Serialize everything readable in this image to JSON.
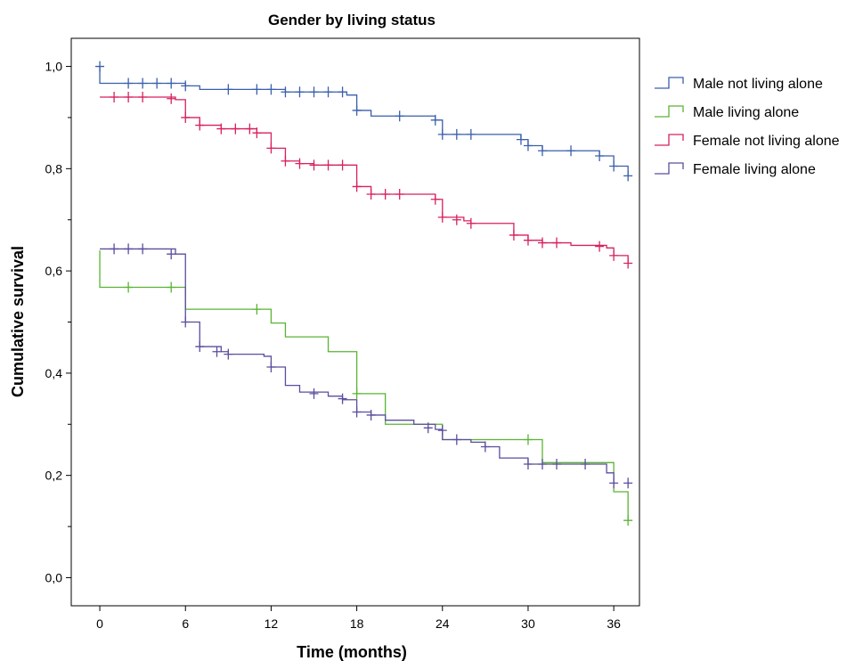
{
  "chart_data": {
    "type": "line",
    "title": "Gender by living status",
    "xlabel": "Time (months)",
    "ylabel": "Cumulative survival",
    "xlim": [
      -2,
      37.8
    ],
    "ylim": [
      -0.055,
      1.055
    ],
    "x_ticks": [
      0,
      6,
      12,
      18,
      24,
      30,
      36
    ],
    "y_ticks": [
      0.0,
      0.2,
      0.4,
      0.6,
      0.8,
      1.0
    ],
    "y_tick_labels": [
      "0,0",
      "0,2",
      "0,4",
      "0,6",
      "0,8",
      "1,0"
    ],
    "y_minor_ticks": [
      0.1,
      0.3,
      0.5,
      0.7,
      0.9
    ],
    "grid": false,
    "legend_position": "right",
    "series": [
      {
        "name": "Male not living alone",
        "color": "#3a5fac",
        "steps": [
          [
            0,
            1.0
          ],
          [
            0,
            0.967
          ],
          [
            6,
            0.962
          ],
          [
            7,
            0.955
          ],
          [
            13,
            0.95
          ],
          [
            17.3,
            0.944
          ],
          [
            18,
            0.914
          ],
          [
            19,
            0.903
          ],
          [
            23.5,
            0.895
          ],
          [
            24,
            0.867
          ],
          [
            29.5,
            0.857
          ],
          [
            30,
            0.845
          ],
          [
            31,
            0.835
          ],
          [
            35,
            0.825
          ],
          [
            36,
            0.805
          ],
          [
            37,
            0.786
          ]
        ],
        "censored": [
          [
            0,
            1.0
          ],
          [
            2,
            0.967
          ],
          [
            3,
            0.967
          ],
          [
            4,
            0.967
          ],
          [
            5,
            0.967
          ],
          [
            6,
            0.962
          ],
          [
            9,
            0.955
          ],
          [
            11,
            0.955
          ],
          [
            12,
            0.955
          ],
          [
            13,
            0.95
          ],
          [
            14,
            0.95
          ],
          [
            15,
            0.95
          ],
          [
            16,
            0.95
          ],
          [
            17,
            0.95
          ],
          [
            18,
            0.914
          ],
          [
            21,
            0.903
          ],
          [
            23.5,
            0.895
          ],
          [
            24,
            0.867
          ],
          [
            25,
            0.867
          ],
          [
            26,
            0.867
          ],
          [
            29.5,
            0.857
          ],
          [
            30,
            0.845
          ],
          [
            31,
            0.835
          ],
          [
            33,
            0.835
          ],
          [
            35,
            0.825
          ],
          [
            36,
            0.805
          ],
          [
            37,
            0.786
          ]
        ]
      },
      {
        "name": "Male living alone",
        "color": "#5ab433",
        "steps": [
          [
            0,
            0.64
          ],
          [
            0,
            0.568
          ],
          [
            6,
            0.525
          ],
          [
            12,
            0.498
          ],
          [
            13,
            0.471
          ],
          [
            16,
            0.442
          ],
          [
            18,
            0.36
          ],
          [
            20,
            0.3
          ],
          [
            24,
            0.27
          ],
          [
            31,
            0.225
          ],
          [
            36,
            0.168
          ],
          [
            37,
            0.112
          ]
        ],
        "censored": [
          [
            2,
            0.568
          ],
          [
            5,
            0.568
          ],
          [
            11,
            0.525
          ],
          [
            18,
            0.36
          ],
          [
            30,
            0.27
          ],
          [
            37,
            0.112
          ]
        ]
      },
      {
        "name": "Female not living alone",
        "color": "#d7215e",
        "steps": [
          [
            0,
            0.94
          ],
          [
            5,
            0.94
          ],
          [
            5.3,
            0.935
          ],
          [
            6,
            0.9
          ],
          [
            7,
            0.885
          ],
          [
            8.5,
            0.878
          ],
          [
            11,
            0.87
          ],
          [
            12,
            0.84
          ],
          [
            13,
            0.815
          ],
          [
            14,
            0.81
          ],
          [
            15,
            0.807
          ],
          [
            18,
            0.765
          ],
          [
            19,
            0.75
          ],
          [
            23.5,
            0.74
          ],
          [
            24,
            0.705
          ],
          [
            25.5,
            0.698
          ],
          [
            26,
            0.693
          ],
          [
            29,
            0.67
          ],
          [
            30,
            0.66
          ],
          [
            31,
            0.655
          ],
          [
            33,
            0.65
          ],
          [
            35.5,
            0.645
          ],
          [
            36,
            0.63
          ],
          [
            37,
            0.615
          ]
        ],
        "censored": [
          [
            1,
            0.94
          ],
          [
            2,
            0.94
          ],
          [
            3,
            0.94
          ],
          [
            5,
            0.937
          ],
          [
            6,
            0.9
          ],
          [
            7,
            0.885
          ],
          [
            8.5,
            0.878
          ],
          [
            9.5,
            0.878
          ],
          [
            10.5,
            0.878
          ],
          [
            11,
            0.87
          ],
          [
            12,
            0.84
          ],
          [
            13,
            0.815
          ],
          [
            14,
            0.81
          ],
          [
            15,
            0.807
          ],
          [
            16,
            0.807
          ],
          [
            17,
            0.807
          ],
          [
            18,
            0.765
          ],
          [
            19,
            0.75
          ],
          [
            20,
            0.75
          ],
          [
            21,
            0.75
          ],
          [
            23.5,
            0.74
          ],
          [
            24,
            0.705
          ],
          [
            25,
            0.7
          ],
          [
            26,
            0.693
          ],
          [
            29,
            0.67
          ],
          [
            30,
            0.66
          ],
          [
            31,
            0.655
          ],
          [
            32,
            0.655
          ],
          [
            35,
            0.648
          ],
          [
            36,
            0.63
          ],
          [
            37,
            0.615
          ]
        ]
      },
      {
        "name": "Female living alone",
        "color": "#5b4d9e",
        "steps": [
          [
            0,
            0.643
          ],
          [
            5,
            0.643
          ],
          [
            5.3,
            0.633
          ],
          [
            6,
            0.5
          ],
          [
            7,
            0.452
          ],
          [
            8.5,
            0.442
          ],
          [
            9,
            0.437
          ],
          [
            11.5,
            0.433
          ],
          [
            12,
            0.412
          ],
          [
            13,
            0.376
          ],
          [
            14,
            0.363
          ],
          [
            16,
            0.355
          ],
          [
            17,
            0.348
          ],
          [
            18,
            0.324
          ],
          [
            19,
            0.318
          ],
          [
            20,
            0.308
          ],
          [
            22,
            0.3
          ],
          [
            23.5,
            0.29
          ],
          [
            24,
            0.27
          ],
          [
            26,
            0.265
          ],
          [
            27,
            0.256
          ],
          [
            28,
            0.234
          ],
          [
            30,
            0.222
          ],
          [
            35,
            0.222
          ],
          [
            35.5,
            0.205
          ],
          [
            36,
            0.185
          ]
        ],
        "censored": [
          [
            1,
            0.643
          ],
          [
            2,
            0.643
          ],
          [
            3,
            0.643
          ],
          [
            5,
            0.633
          ],
          [
            6,
            0.5
          ],
          [
            7,
            0.452
          ],
          [
            8.2,
            0.442
          ],
          [
            9,
            0.437
          ],
          [
            12,
            0.412
          ],
          [
            15,
            0.36
          ],
          [
            17,
            0.35
          ],
          [
            18,
            0.324
          ],
          [
            19,
            0.318
          ],
          [
            23,
            0.293
          ],
          [
            24,
            0.288
          ],
          [
            25,
            0.27
          ],
          [
            27,
            0.256
          ],
          [
            30,
            0.222
          ],
          [
            31,
            0.222
          ],
          [
            32,
            0.222
          ],
          [
            34,
            0.222
          ],
          [
            36,
            0.185
          ],
          [
            37,
            0.185
          ]
        ]
      }
    ]
  }
}
